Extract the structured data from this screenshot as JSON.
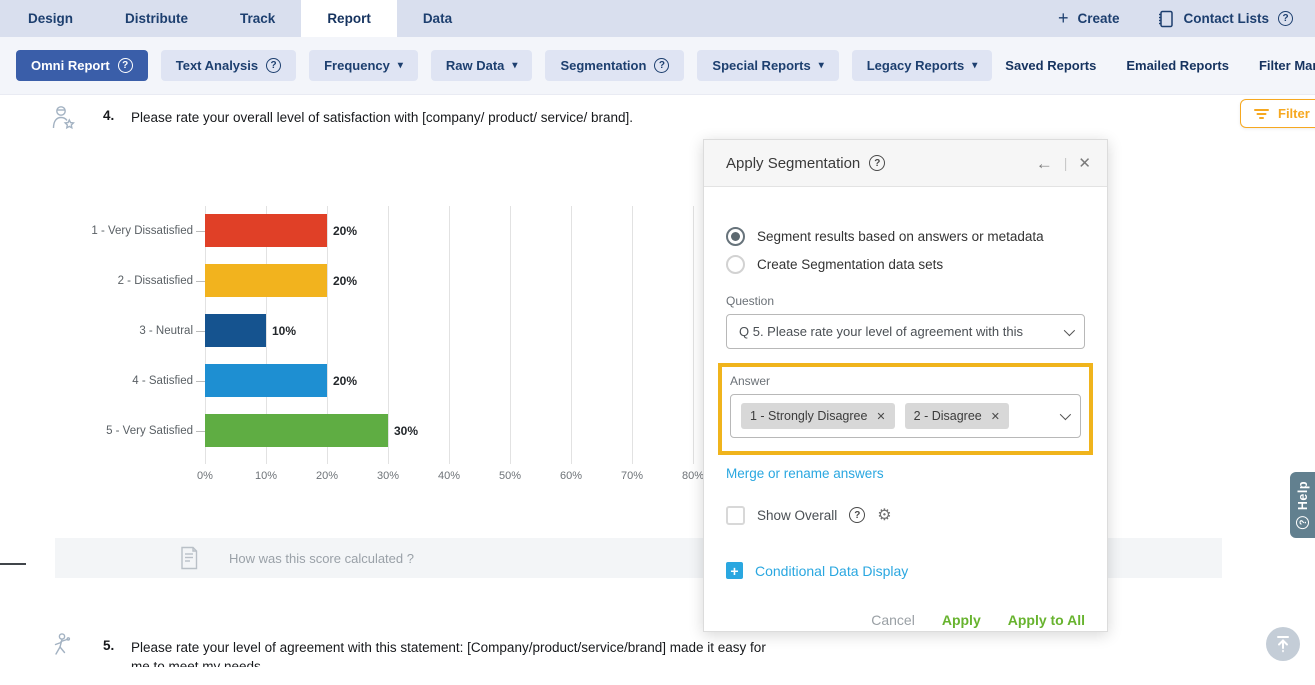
{
  "colors": {
    "nav_bg": "#d9dfee",
    "nav_text": "#1d3f6f",
    "active_button_bg": "#3a5ea9",
    "toolbar_bg": "#f3f5fa",
    "chip_bg": "#dfe4f3",
    "link_blue": "#2aa7e0",
    "apply_green": "#67b32e",
    "highlight_orange": "#f0b41c",
    "filter_orange": "#f6a820",
    "help_tab_bg": "#62808f"
  },
  "icons": {
    "back": "←",
    "close": "✕",
    "divider": "|",
    "help": "?",
    "plus": "+",
    "caret": "▾",
    "gear": "⚙",
    "remove": "✕"
  },
  "top_nav": {
    "tabs": [
      {
        "label": "Design",
        "active": false
      },
      {
        "label": "Distribute",
        "active": false
      },
      {
        "label": "Track",
        "active": false
      },
      {
        "label": "Report",
        "active": true
      },
      {
        "label": "Data",
        "active": false
      }
    ],
    "create_label": "Create",
    "contact_lists_label": "Contact Lists"
  },
  "toolbar": {
    "buttons": [
      {
        "label": "Omni Report",
        "suffix": "help",
        "active": true
      },
      {
        "label": "Text Analysis",
        "suffix": "help",
        "active": false
      },
      {
        "label": "Frequency",
        "suffix": "caret",
        "active": false
      },
      {
        "label": "Raw Data",
        "suffix": "caret",
        "active": false
      },
      {
        "label": "Segmentation",
        "suffix": "help",
        "active": false
      },
      {
        "label": "Special Reports",
        "suffix": "caret",
        "active": false
      },
      {
        "label": "Legacy Reports",
        "suffix": "caret",
        "active": false
      }
    ],
    "links": [
      {
        "label": "Saved Reports",
        "help": false
      },
      {
        "label": "Emailed Reports",
        "help": false
      },
      {
        "label": "Filter Manager",
        "help": true
      }
    ]
  },
  "filter_button": {
    "label": "Filter"
  },
  "question4": {
    "number": "4.",
    "text": "Please rate your overall level of satisfaction with [company/ product/ service/ brand]."
  },
  "chart_data": {
    "type": "bar",
    "orientation": "horizontal",
    "title": "",
    "categories": [
      "1 - Very Dissatisfied",
      "2 - Dissatisfied",
      "3 - Neutral",
      "4 - Satisfied",
      "5 - Very Satisfied"
    ],
    "values": [
      20,
      20,
      10,
      20,
      30
    ],
    "value_labels": [
      "20%",
      "20%",
      "10%",
      "20%",
      "30%"
    ],
    "bar_colors": [
      "#e04027",
      "#f2b31e",
      "#15538f",
      "#1e8fd2",
      "#5fad43"
    ],
    "x_ticks": [
      "0%",
      "10%",
      "20%",
      "30%",
      "40%",
      "50%",
      "60%",
      "70%",
      "80%"
    ],
    "x_tick_values": [
      0,
      10,
      20,
      30,
      40,
      50,
      60,
      70,
      80
    ],
    "xlim": [
      0,
      100
    ],
    "grid": true,
    "legend": "none"
  },
  "score_row": {
    "text": "How was this score calculated ?"
  },
  "question5": {
    "number": "5.",
    "text": "Please rate your level of agreement with this statement: [Company/product/service/brand] made it easy for me to meet my needs."
  },
  "modal": {
    "title": "Apply Segmentation",
    "radios": [
      {
        "label": "Segment results based on answers or metadata",
        "selected": true
      },
      {
        "label": "Create Segmentation data sets",
        "selected": false
      }
    ],
    "question_label": "Question",
    "question_value": "Q 5. Please rate your level of agreement with this",
    "answer_label": "Answer",
    "answer_chips": [
      "1 - Strongly Disagree",
      "2 - Disagree"
    ],
    "merge_link": "Merge or rename answers",
    "show_overall_label": "Show Overall",
    "show_overall_checked": false,
    "conditional_link": "Conditional Data Display",
    "cancel_label": "Cancel",
    "apply_label": "Apply",
    "apply_all_label": "Apply to All"
  },
  "help_tab": {
    "label": "Help"
  }
}
